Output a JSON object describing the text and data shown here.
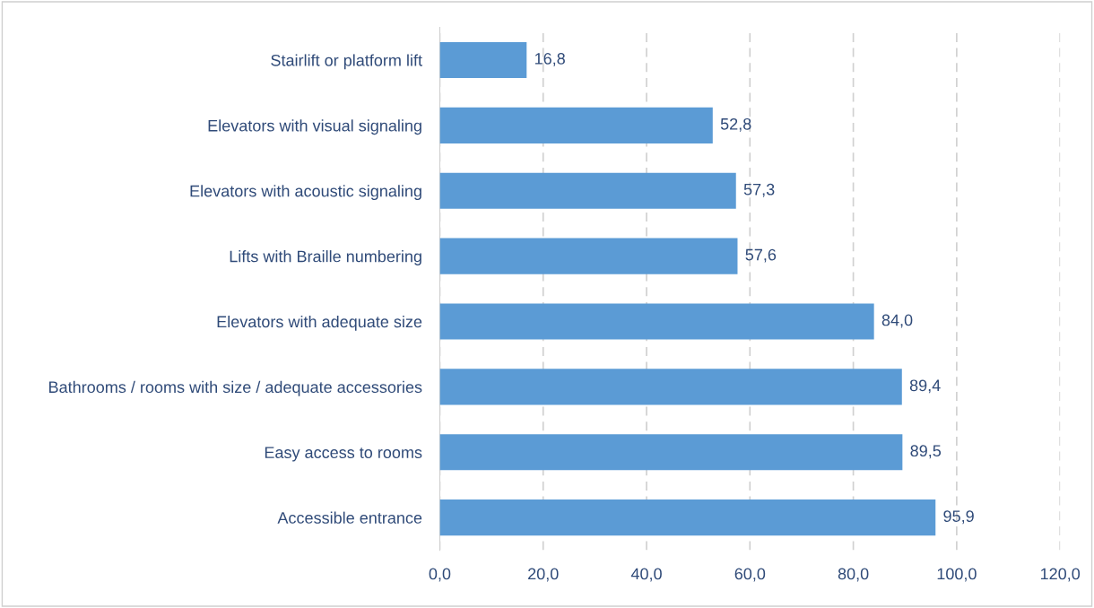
{
  "chart_data": {
    "type": "bar",
    "orientation": "horizontal",
    "categories": [
      "Stairlift or platform lift",
      "Elevators with visual signaling",
      "Elevators with acoustic signaling",
      "Lifts with Braille numbering",
      "Elevators with adequate size",
      "Bathrooms / rooms with size / adequate accessories",
      "Easy access to rooms",
      "Accessible entrance"
    ],
    "values": [
      16.8,
      52.8,
      57.3,
      57.6,
      84.0,
      89.4,
      89.5,
      95.9
    ],
    "value_labels": [
      "16,8",
      "52,8",
      "57,3",
      "57,6",
      "84,0",
      "89,4",
      "89,5",
      "95,9"
    ],
    "color": "#5b9bd5",
    "xlim": [
      0,
      120
    ],
    "xticks": [
      {
        "value": 0,
        "label": "0,0"
      },
      {
        "value": 20,
        "label": "20,0"
      },
      {
        "value": 40,
        "label": "40,0"
      },
      {
        "value": 60,
        "label": "60,0"
      },
      {
        "value": 80,
        "label": "80,0"
      },
      {
        "value": 100,
        "label": "100,0"
      },
      {
        "value": 120,
        "label": "120,0"
      }
    ],
    "grid": "x",
    "legend": false
  }
}
